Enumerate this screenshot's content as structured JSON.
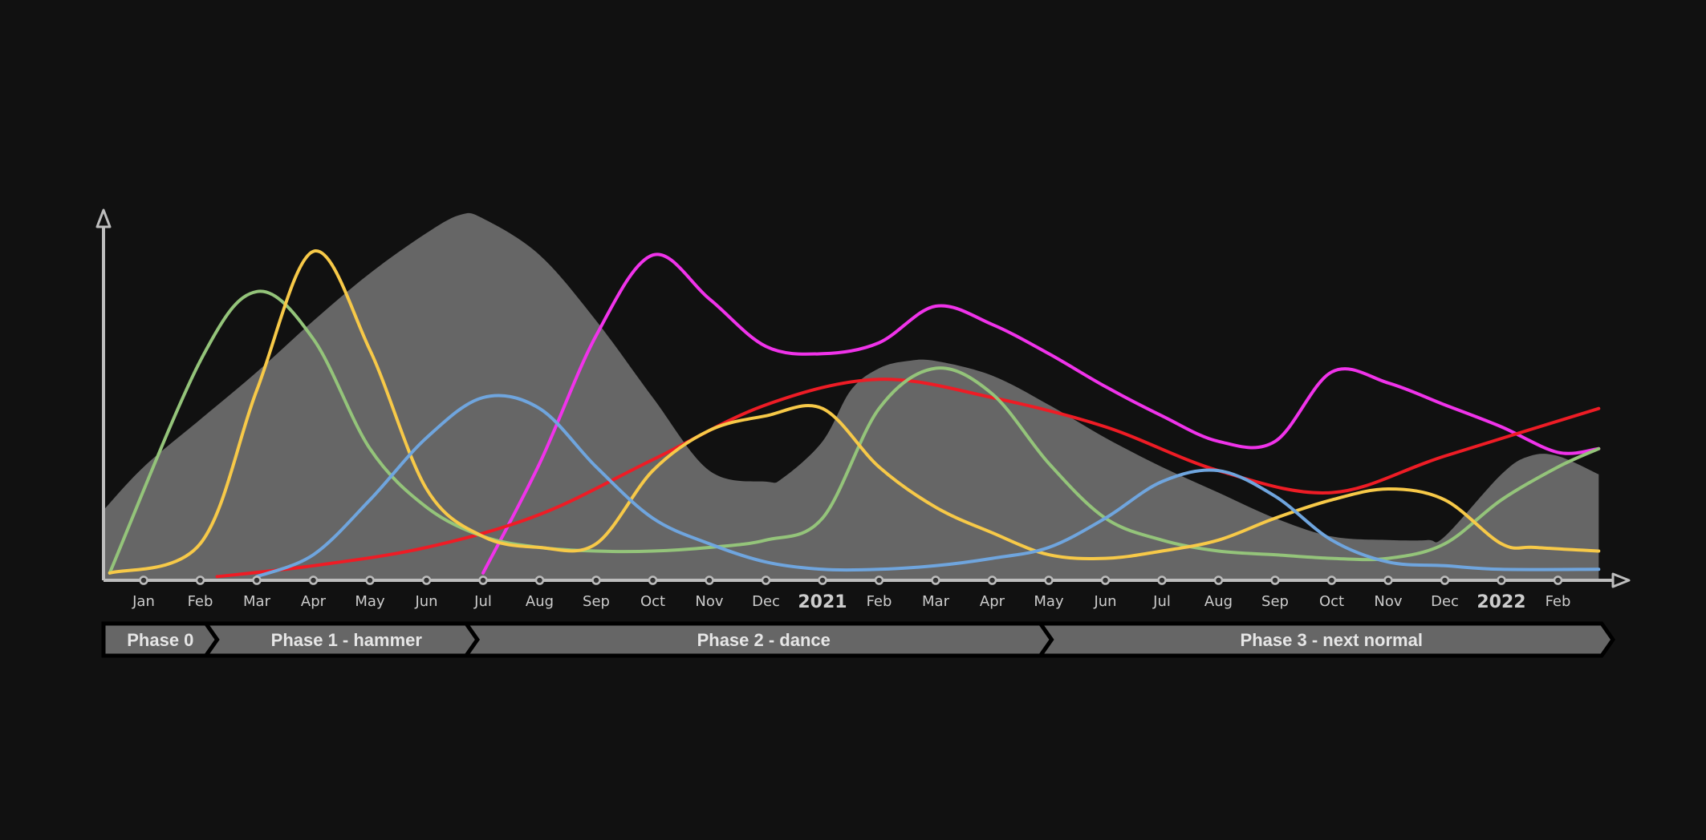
{
  "chart_data": {
    "type": "line",
    "title": "",
    "xlabel": "",
    "ylabel": "",
    "x_ticks": [
      "Jan",
      "Feb",
      "Mar",
      "Apr",
      "May",
      "Jun",
      "Jul",
      "Aug",
      "Sep",
      "Oct",
      "Nov",
      "Dec",
      "2021",
      "Feb",
      "Mar",
      "Apr",
      "May",
      "Jun",
      "Jul",
      "Aug",
      "Sep",
      "Oct",
      "Nov",
      "Dec",
      "2022",
      "Feb"
    ],
    "year_ticks": [
      12,
      24
    ],
    "x_range": [
      -0.72,
      25.72
    ],
    "y_range": [
      0,
      100
    ],
    "grid": false,
    "legend": "none",
    "phases": [
      {
        "label": "Phase 0",
        "start": -0.72,
        "end": 1.3
      },
      {
        "label": "Phase 1 - hammer",
        "start": 1.3,
        "end": 5.9
      },
      {
        "label": "Phase 2 - dance",
        "start": 5.9,
        "end": 16.05
      },
      {
        "label": "Phase 3 - next normal",
        "start": 16.05,
        "end": 25.72
      }
    ],
    "area": {
      "color": "#666666",
      "x": [
        -0.72,
        0,
        1,
        2,
        3,
        4,
        5,
        5.6,
        6,
        7,
        8,
        9,
        10,
        11,
        11.3,
        12,
        12.5,
        13,
        13.5,
        14,
        15,
        16,
        17,
        18,
        19,
        20,
        21,
        22,
        22.7,
        23,
        24,
        24.5,
        25,
        25.72
      ],
      "y": [
        19,
        31,
        44,
        57,
        71,
        84,
        95,
        100,
        99,
        89,
        71,
        50,
        30,
        27,
        28,
        38,
        52,
        58,
        60,
        60,
        56,
        48,
        39,
        31,
        24,
        17,
        12,
        11,
        11,
        12,
        29,
        34,
        34,
        29
      ]
    },
    "series": [
      {
        "color": "#f033ea",
        "x": [
          6,
          7,
          8,
          9,
          10,
          11,
          12,
          13,
          14,
          15,
          16,
          17,
          18,
          19,
          20,
          21,
          22,
          23,
          24,
          25,
          25.72
        ],
        "y": [
          2,
          32,
          67,
          89,
          77,
          64,
          62,
          65,
          75,
          70,
          62,
          53,
          45,
          38,
          38,
          57,
          54,
          48,
          42,
          35,
          36
        ]
      },
      {
        "color": "#ee1c25",
        "x": [
          1.3,
          3,
          5,
          7,
          9,
          11,
          13,
          15,
          17,
          19,
          21,
          23,
          25.72
        ],
        "y": [
          1,
          4,
          9,
          18,
          33,
          48,
          55,
          50,
          42,
          30,
          24,
          34,
          47
        ]
      },
      {
        "color": "#94c47a",
        "x": [
          -0.6,
          1,
          2,
          3,
          4,
          5,
          6,
          7,
          8,
          9,
          10,
          11,
          12,
          13,
          14,
          15,
          16,
          17,
          18,
          19,
          20,
          21,
          22,
          23,
          24,
          25,
          25.72
        ],
        "y": [
          2,
          60,
          79,
          66,
          36,
          20,
          12,
          9,
          8,
          8,
          9,
          11,
          17,
          47,
          58,
          51,
          32,
          17,
          11,
          8,
          7,
          6,
          6,
          10,
          22,
          31,
          36
        ]
      },
      {
        "color": "#f7c948",
        "x": [
          -0.6,
          1,
          2,
          3,
          4,
          5,
          6,
          7,
          8,
          9,
          10,
          11,
          12,
          13,
          14,
          15,
          16,
          17,
          18,
          19,
          20,
          21,
          22,
          23,
          24,
          24.6,
          25.72
        ],
        "y": [
          2,
          10,
          52,
          90,
          63,
          25,
          12,
          9,
          10,
          30,
          41,
          45,
          47,
          31,
          20,
          13,
          7,
          6,
          8,
          11,
          17,
          22,
          25,
          22,
          10,
          9,
          8
        ]
      },
      {
        "color": "#6fa5de",
        "x": [
          2,
          3,
          4,
          5,
          6,
          7,
          8,
          9,
          10,
          11,
          12,
          13,
          14,
          15,
          16,
          17,
          18,
          19,
          20,
          21,
          22,
          23,
          24,
          25.72
        ],
        "y": [
          1,
          7,
          22,
          39,
          50,
          47,
          31,
          17,
          10,
          5,
          3,
          3,
          4,
          6,
          9,
          17,
          27,
          30,
          23,
          11,
          5,
          4,
          3,
          3
        ]
      }
    ]
  }
}
